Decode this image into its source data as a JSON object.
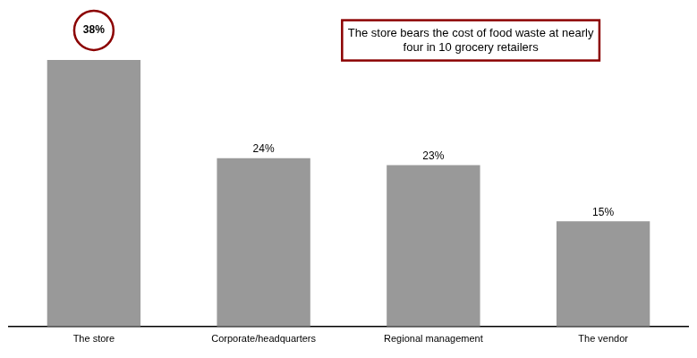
{
  "chart_data": {
    "type": "bar",
    "categories": [
      "The store",
      "Corporate/headquarters",
      "Regional management",
      "The vendor"
    ],
    "values": [
      38,
      24,
      23,
      15
    ],
    "value_labels": [
      "38%",
      "24%",
      "23%",
      "15%"
    ],
    "data_labels": true,
    "color": "#999999",
    "ylim": [
      0,
      45
    ],
    "grid": false,
    "tick_labels": "x",
    "annotations": [
      {
        "text": "The store bears the cost of food waste at nearly\nfour in 10 grocery retailers",
        "color": "#8b0000"
      }
    ]
  }
}
